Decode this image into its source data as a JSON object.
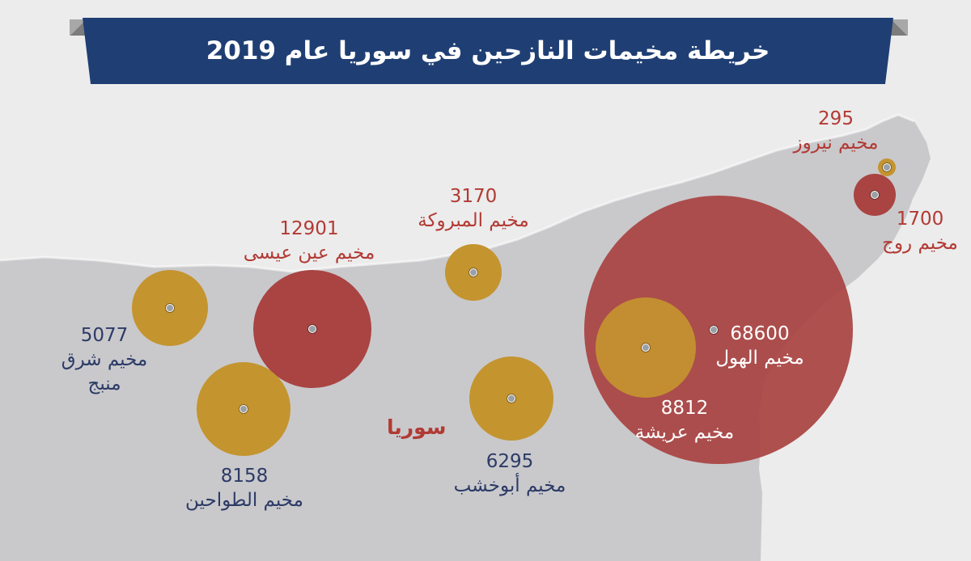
{
  "title": "خريطة مخيمات النازحين في سوريا عام 2019",
  "country_label": "سوريا",
  "colors": {
    "banner": "#1f3f74",
    "red_circle": "#a94442",
    "gold_circle": "#c4942f",
    "label_navy": "#2c3a66",
    "label_red": "#b23a34",
    "land": "#c9c9cc",
    "background": "#ececec"
  },
  "camps": [
    {
      "id": "nawruz",
      "name": "مخيم نيروز",
      "population": "295",
      "color": "gold"
    },
    {
      "id": "roj",
      "name": "مخيم روج",
      "population": "1700",
      "color": "red"
    },
    {
      "id": "mabrouka",
      "name": "مخيم المبروكة",
      "population": "3170",
      "color": "gold"
    },
    {
      "id": "ain-issa",
      "name": "مخيم عين عيسى",
      "population": "12901",
      "color": "red"
    },
    {
      "id": "sharq-manbij",
      "name": "مخيم شرق منبج",
      "population": "5077",
      "color": "gold"
    },
    {
      "id": "tawahin",
      "name": "مخيم الطواحين",
      "population": "8158",
      "color": "gold"
    },
    {
      "id": "abu-khashab",
      "name": "مخيم أبوخشب",
      "population": "6295",
      "color": "gold"
    },
    {
      "id": "hol",
      "name": "مخيم الهول",
      "population": "68600",
      "color": "red"
    },
    {
      "id": "arisha",
      "name": "مخيم عريشة",
      "population": "8812",
      "color": "gold"
    }
  ]
}
